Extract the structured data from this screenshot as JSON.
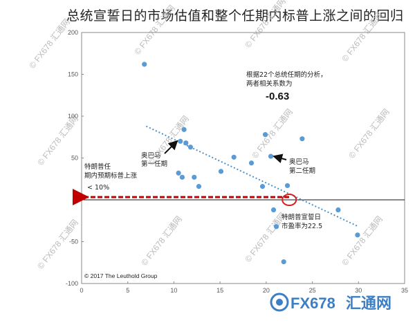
{
  "title": "总统宣誓日的市场估值和整个任期内标普上涨之间的回归",
  "watermark": {
    "text": "© FX678 汇通网",
    "brand": "FX678",
    "brand_cn": "汇通网"
  },
  "copyright": "© 2017 The Leuthold Group",
  "colors": {
    "points": "#5b9bd5",
    "trend": "#4a90c8",
    "arrow": "#c00000",
    "circle": "#d42020",
    "brand": "#3d7fc4"
  },
  "annotations": {
    "corr_line1": "根据22个总统任期的分析，",
    "corr_line2": "两者相关系数为",
    "corr_value": "-0.63",
    "obama1_line1": "奥巴马",
    "obama1_line2": "第一任期",
    "obama2_line1": "奥巴马",
    "obama2_line2": "第二任期",
    "trump_exp_line1": "特朗普任",
    "trump_exp_line2": "期内预期标普上涨",
    "trump_exp_line3": "< 10%",
    "trump_pe_line1": "特朗普宣誓日",
    "trump_pe_line2": "市盈率为22.5"
  },
  "chart_data": {
    "type": "scatter",
    "x_ticks": [
      "0",
      "5",
      "10",
      "15",
      "20",
      "25",
      "30",
      "35"
    ],
    "y_ticks": [
      "200",
      "150",
      "100",
      "50",
      "0",
      "-50",
      "-100"
    ],
    "xlim": [
      0,
      35
    ],
    "ylim": [
      -100,
      200
    ],
    "grid": false,
    "points": [
      {
        "x": 6.8,
        "y": 162
      },
      {
        "x": 10.7,
        "y": 70
      },
      {
        "x": 11.1,
        "y": 84
      },
      {
        "x": 11.3,
        "y": 68
      },
      {
        "x": 11.8,
        "y": 63
      },
      {
        "x": 10.5,
        "y": 32
      },
      {
        "x": 10.9,
        "y": 27
      },
      {
        "x": 12.2,
        "y": 27
      },
      {
        "x": 12.7,
        "y": 16
      },
      {
        "x": 15.1,
        "y": 34
      },
      {
        "x": 16.5,
        "y": 51
      },
      {
        "x": 18.4,
        "y": 44
      },
      {
        "x": 19.9,
        "y": 78
      },
      {
        "x": 20.5,
        "y": 52
      },
      {
        "x": 19.6,
        "y": 16
      },
      {
        "x": 22.3,
        "y": 17
      },
      {
        "x": 23.9,
        "y": 73
      },
      {
        "x": 20.8,
        "y": -12
      },
      {
        "x": 21.1,
        "y": -32
      },
      {
        "x": 21.9,
        "y": -74
      },
      {
        "x": 27.8,
        "y": -12
      },
      {
        "x": 29.9,
        "y": -42
      }
    ],
    "trend_line": {
      "x": [
        7,
        30
      ],
      "y": [
        88,
        -32
      ]
    },
    "highlight": {
      "x": 22.5,
      "y": 0
    }
  }
}
